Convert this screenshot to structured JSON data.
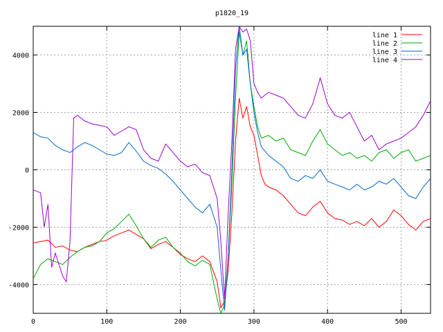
{
  "chart_data": {
    "type": "line",
    "title": "p1820_19",
    "xlabel": "",
    "ylabel": "",
    "xlim": [
      0,
      540
    ],
    "ylim": [
      -5000,
      5000
    ],
    "x_ticks": [
      0,
      100,
      200,
      300,
      400,
      500
    ],
    "y_ticks": [
      -4000,
      -2000,
      0,
      2000,
      4000
    ],
    "grid": true,
    "legend_position": "top-right",
    "series": [
      {
        "name": "line 1",
        "color": "#ff0000",
        "points": [
          [
            0,
            -2550
          ],
          [
            10,
            -2500
          ],
          [
            20,
            -2450
          ],
          [
            30,
            -2700
          ],
          [
            40,
            -2650
          ],
          [
            50,
            -2800
          ],
          [
            60,
            -2850
          ],
          [
            70,
            -2700
          ],
          [
            80,
            -2600
          ],
          [
            90,
            -2500
          ],
          [
            100,
            -2450
          ],
          [
            110,
            -2300
          ],
          [
            120,
            -2200
          ],
          [
            130,
            -2100
          ],
          [
            140,
            -2250
          ],
          [
            150,
            -2400
          ],
          [
            160,
            -2750
          ],
          [
            170,
            -2600
          ],
          [
            180,
            -2500
          ],
          [
            190,
            -2700
          ],
          [
            200,
            -2950
          ],
          [
            210,
            -3100
          ],
          [
            220,
            -3200
          ],
          [
            230,
            -3000
          ],
          [
            240,
            -3200
          ],
          [
            250,
            -3900
          ],
          [
            255,
            -4800
          ],
          [
            260,
            -4600
          ],
          [
            265,
            -3500
          ],
          [
            270,
            -1500
          ],
          [
            275,
            1000
          ],
          [
            280,
            2500
          ],
          [
            285,
            1800
          ],
          [
            290,
            2200
          ],
          [
            295,
            1500
          ],
          [
            300,
            1200
          ],
          [
            305,
            500
          ],
          [
            310,
            -200
          ],
          [
            315,
            -500
          ],
          [
            320,
            -600
          ],
          [
            330,
            -700
          ],
          [
            340,
            -900
          ],
          [
            350,
            -1200
          ],
          [
            360,
            -1500
          ],
          [
            370,
            -1600
          ],
          [
            380,
            -1300
          ],
          [
            390,
            -1100
          ],
          [
            400,
            -1500
          ],
          [
            410,
            -1700
          ],
          [
            420,
            -1750
          ],
          [
            430,
            -1900
          ],
          [
            440,
            -1800
          ],
          [
            450,
            -1950
          ],
          [
            460,
            -1700
          ],
          [
            470,
            -2000
          ],
          [
            480,
            -1800
          ],
          [
            490,
            -1400
          ],
          [
            500,
            -1600
          ],
          [
            510,
            -1900
          ],
          [
            520,
            -2100
          ],
          [
            530,
            -1800
          ],
          [
            540,
            -1700
          ]
        ]
      },
      {
        "name": "line 2",
        "color": "#00aa00",
        "points": [
          [
            0,
            -3800
          ],
          [
            10,
            -3300
          ],
          [
            20,
            -3100
          ],
          [
            30,
            -3200
          ],
          [
            40,
            -3300
          ],
          [
            50,
            -3050
          ],
          [
            60,
            -2850
          ],
          [
            70,
            -2700
          ],
          [
            80,
            -2650
          ],
          [
            90,
            -2500
          ],
          [
            100,
            -2200
          ],
          [
            110,
            -2050
          ],
          [
            120,
            -1800
          ],
          [
            130,
            -1550
          ],
          [
            140,
            -1950
          ],
          [
            150,
            -2400
          ],
          [
            160,
            -2700
          ],
          [
            170,
            -2450
          ],
          [
            180,
            -2350
          ],
          [
            190,
            -2700
          ],
          [
            200,
            -2900
          ],
          [
            210,
            -3200
          ],
          [
            220,
            -3350
          ],
          [
            230,
            -3150
          ],
          [
            240,
            -3300
          ],
          [
            250,
            -4500
          ],
          [
            255,
            -5000
          ],
          [
            260,
            -4700
          ],
          [
            265,
            -3000
          ],
          [
            270,
            -500
          ],
          [
            275,
            2500
          ],
          [
            280,
            4800
          ],
          [
            285,
            4000
          ],
          [
            290,
            4500
          ],
          [
            295,
            3000
          ],
          [
            300,
            2200
          ],
          [
            305,
            1500
          ],
          [
            310,
            1100
          ],
          [
            320,
            1200
          ],
          [
            330,
            1000
          ],
          [
            340,
            1100
          ],
          [
            350,
            700
          ],
          [
            360,
            600
          ],
          [
            370,
            500
          ],
          [
            380,
            1000
          ],
          [
            390,
            1400
          ],
          [
            400,
            900
          ],
          [
            410,
            700
          ],
          [
            420,
            500
          ],
          [
            430,
            600
          ],
          [
            440,
            400
          ],
          [
            450,
            500
          ],
          [
            460,
            300
          ],
          [
            470,
            600
          ],
          [
            480,
            700
          ],
          [
            490,
            400
          ],
          [
            500,
            600
          ],
          [
            510,
            700
          ],
          [
            520,
            300
          ],
          [
            530,
            400
          ],
          [
            540,
            500
          ]
        ]
      },
      {
        "name": "line 3",
        "color": "#0066cc",
        "points": [
          [
            0,
            1300
          ],
          [
            10,
            1150
          ],
          [
            20,
            1100
          ],
          [
            30,
            850
          ],
          [
            40,
            700
          ],
          [
            50,
            600
          ],
          [
            60,
            800
          ],
          [
            70,
            950
          ],
          [
            80,
            850
          ],
          [
            90,
            700
          ],
          [
            100,
            550
          ],
          [
            110,
            500
          ],
          [
            120,
            600
          ],
          [
            130,
            950
          ],
          [
            140,
            650
          ],
          [
            150,
            300
          ],
          [
            160,
            150
          ],
          [
            170,
            50
          ],
          [
            180,
            -150
          ],
          [
            190,
            -400
          ],
          [
            200,
            -700
          ],
          [
            210,
            -1000
          ],
          [
            220,
            -1300
          ],
          [
            230,
            -1500
          ],
          [
            240,
            -1200
          ],
          [
            250,
            -2000
          ],
          [
            255,
            -3500
          ],
          [
            260,
            -4900
          ],
          [
            265,
            -3000
          ],
          [
            270,
            0
          ],
          [
            275,
            3500
          ],
          [
            280,
            5000
          ],
          [
            285,
            4000
          ],
          [
            290,
            4200
          ],
          [
            295,
            3000
          ],
          [
            300,
            2000
          ],
          [
            305,
            1300
          ],
          [
            310,
            800
          ],
          [
            320,
            500
          ],
          [
            330,
            300
          ],
          [
            340,
            100
          ],
          [
            350,
            -300
          ],
          [
            360,
            -400
          ],
          [
            370,
            -200
          ],
          [
            380,
            -300
          ],
          [
            390,
            0
          ],
          [
            400,
            -400
          ],
          [
            410,
            -500
          ],
          [
            420,
            -600
          ],
          [
            430,
            -700
          ],
          [
            440,
            -500
          ],
          [
            450,
            -700
          ],
          [
            460,
            -600
          ],
          [
            470,
            -400
          ],
          [
            480,
            -500
          ],
          [
            490,
            -300
          ],
          [
            500,
            -600
          ],
          [
            510,
            -900
          ],
          [
            520,
            -1000
          ],
          [
            530,
            -600
          ],
          [
            540,
            -300
          ]
        ]
      },
      {
        "name": "line 4",
        "color": "#9900cc",
        "points": [
          [
            0,
            -700
          ],
          [
            10,
            -800
          ],
          [
            15,
            -2000
          ],
          [
            20,
            -1200
          ],
          [
            25,
            -3400
          ],
          [
            30,
            -2900
          ],
          [
            40,
            -3700
          ],
          [
            45,
            -3900
          ],
          [
            50,
            -2500
          ],
          [
            55,
            1800
          ],
          [
            60,
            1900
          ],
          [
            70,
            1700
          ],
          [
            80,
            1600
          ],
          [
            90,
            1550
          ],
          [
            100,
            1500
          ],
          [
            110,
            1200
          ],
          [
            120,
            1350
          ],
          [
            130,
            1500
          ],
          [
            140,
            1400
          ],
          [
            150,
            700
          ],
          [
            160,
            400
          ],
          [
            170,
            300
          ],
          [
            180,
            900
          ],
          [
            190,
            600
          ],
          [
            200,
            300
          ],
          [
            210,
            100
          ],
          [
            220,
            200
          ],
          [
            230,
            -100
          ],
          [
            240,
            -200
          ],
          [
            250,
            -1000
          ],
          [
            255,
            -2500
          ],
          [
            260,
            -4500
          ],
          [
            265,
            -1500
          ],
          [
            270,
            1000
          ],
          [
            275,
            4200
          ],
          [
            280,
            5000
          ],
          [
            285,
            4800
          ],
          [
            290,
            4900
          ],
          [
            295,
            4500
          ],
          [
            300,
            3000
          ],
          [
            305,
            2700
          ],
          [
            310,
            2500
          ],
          [
            320,
            2700
          ],
          [
            330,
            2600
          ],
          [
            340,
            2500
          ],
          [
            350,
            2200
          ],
          [
            360,
            1900
          ],
          [
            370,
            1800
          ],
          [
            380,
            2300
          ],
          [
            390,
            3200
          ],
          [
            400,
            2300
          ],
          [
            410,
            1900
          ],
          [
            420,
            1800
          ],
          [
            430,
            2000
          ],
          [
            440,
            1500
          ],
          [
            450,
            1000
          ],
          [
            460,
            1200
          ],
          [
            470,
            700
          ],
          [
            480,
            900
          ],
          [
            490,
            1000
          ],
          [
            500,
            1100
          ],
          [
            510,
            1300
          ],
          [
            520,
            1500
          ],
          [
            530,
            1900
          ],
          [
            540,
            2400
          ]
        ]
      }
    ]
  }
}
